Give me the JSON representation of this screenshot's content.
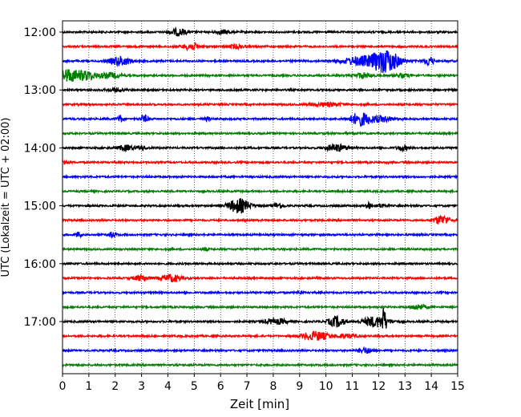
{
  "chart_data": {
    "type": "line",
    "title": "",
    "xlabel": "Zeit  [min]",
    "ylabel": "UTC (Lokalzeit = UTC + 02:00)",
    "xlim": [
      0,
      15
    ],
    "x_ticks": [
      "0",
      "1",
      "2",
      "3",
      "4",
      "5",
      "6",
      "7",
      "8",
      "9",
      "10",
      "11",
      "12",
      "13",
      "14",
      "15"
    ],
    "y_ticks": [
      "12:00",
      "13:00",
      "14:00",
      "15:00",
      "16:00",
      "17:00"
    ],
    "grid": "vertical-dotted",
    "trace_colors": [
      "#000000",
      "#ff0000",
      "#0000ff",
      "#008000"
    ],
    "traces": [
      {
        "start": "12:00",
        "color": "#000000",
        "events": [
          {
            "t": 4.4,
            "a": 4,
            "w": 0.3
          },
          {
            "t": 6.1,
            "a": 2,
            "w": 0.3
          }
        ]
      },
      {
        "start": "12:15",
        "color": "#ff0000",
        "events": [
          {
            "t": 4.9,
            "a": 4,
            "w": 0.3
          },
          {
            "t": 6.6,
            "a": 2,
            "w": 0.3
          }
        ]
      },
      {
        "start": "12:30",
        "color": "#0000ff",
        "events": [
          {
            "t": 2.2,
            "a": 5,
            "w": 0.4
          },
          {
            "t": 11.4,
            "a": 5,
            "w": 0.8
          },
          {
            "t": 12.3,
            "a": 12,
            "w": 0.5
          },
          {
            "t": 13.9,
            "a": 5,
            "w": 0.2
          }
        ]
      },
      {
        "start": "12:45",
        "color": "#008000",
        "events": [
          {
            "t": 0.2,
            "a": 7,
            "w": 0.4
          },
          {
            "t": 0.9,
            "a": 5,
            "w": 0.4
          },
          {
            "t": 1.8,
            "a": 3,
            "w": 0.4
          },
          {
            "t": 11.4,
            "a": 3,
            "w": 0.3
          },
          {
            "t": 12.9,
            "a": 2,
            "w": 0.3
          }
        ]
      },
      {
        "start": "13:00",
        "color": "#000000",
        "events": [
          {
            "t": 2.0,
            "a": 2,
            "w": 0.3
          }
        ]
      },
      {
        "start": "13:15",
        "color": "#ff0000",
        "events": [
          {
            "t": 10.0,
            "a": 2,
            "w": 0.6
          }
        ]
      },
      {
        "start": "13:30",
        "color": "#0000ff",
        "events": [
          {
            "t": 2.2,
            "a": 4,
            "w": 0.1
          },
          {
            "t": 3.1,
            "a": 4,
            "w": 0.15
          },
          {
            "t": 5.5,
            "a": 2,
            "w": 0.1
          },
          {
            "t": 11.3,
            "a": 7,
            "w": 0.4
          },
          {
            "t": 12.1,
            "a": 3,
            "w": 0.5
          }
        ]
      },
      {
        "start": "13:45",
        "color": "#008000",
        "events": []
      },
      {
        "start": "14:00",
        "color": "#000000",
        "events": [
          {
            "t": 2.4,
            "a": 3,
            "w": 0.3
          },
          {
            "t": 3.0,
            "a": 2,
            "w": 0.2
          },
          {
            "t": 10.4,
            "a": 4,
            "w": 0.4
          },
          {
            "t": 12.9,
            "a": 3,
            "w": 0.2
          }
        ]
      },
      {
        "start": "14:15",
        "color": "#ff0000",
        "events": [
          {
            "t": 0.1,
            "a": 3,
            "w": 0.1
          }
        ]
      },
      {
        "start": "14:30",
        "color": "#0000ff",
        "events": []
      },
      {
        "start": "14:45",
        "color": "#008000",
        "events": []
      },
      {
        "start": "15:00",
        "color": "#000000",
        "events": [
          {
            "t": 6.7,
            "a": 8,
            "w": 0.4
          },
          {
            "t": 8.2,
            "a": 3,
            "w": 0.2
          },
          {
            "t": 11.6,
            "a": 5,
            "w": 0.08
          },
          {
            "t": 12.1,
            "a": 2,
            "w": 0.2
          }
        ]
      },
      {
        "start": "15:15",
        "color": "#ff0000",
        "events": [
          {
            "t": 14.4,
            "a": 5,
            "w": 0.3
          }
        ]
      },
      {
        "start": "15:30",
        "color": "#0000ff",
        "events": [
          {
            "t": 0.6,
            "a": 3,
            "w": 0.1
          },
          {
            "t": 1.9,
            "a": 3,
            "w": 0.15
          }
        ]
      },
      {
        "start": "15:45",
        "color": "#008000",
        "events": [
          {
            "t": 5.4,
            "a": 2,
            "w": 0.1
          }
        ]
      },
      {
        "start": "16:00",
        "color": "#000000",
        "events": []
      },
      {
        "start": "16:15",
        "color": "#ff0000",
        "events": [
          {
            "t": 3.0,
            "a": 3,
            "w": 0.3
          },
          {
            "t": 4.1,
            "a": 4,
            "w": 0.4
          }
        ]
      },
      {
        "start": "16:30",
        "color": "#0000ff",
        "events": [
          {
            "t": 9.0,
            "a": 2,
            "w": 0.1
          }
        ]
      },
      {
        "start": "16:45",
        "color": "#008000",
        "events": [
          {
            "t": 13.5,
            "a": 3,
            "w": 0.3
          }
        ]
      },
      {
        "start": "17:00",
        "color": "#000000",
        "events": [
          {
            "t": 7.9,
            "a": 2,
            "w": 0.3
          },
          {
            "t": 8.3,
            "a": 2,
            "w": 0.3
          },
          {
            "t": 10.4,
            "a": 6,
            "w": 0.3
          },
          {
            "t": 11.9,
            "a": 6,
            "w": 0.5
          },
          {
            "t": 12.2,
            "a": 12,
            "w": 0.08
          }
        ]
      },
      {
        "start": "17:15",
        "color": "#ff0000",
        "events": [
          {
            "t": 9.6,
            "a": 5,
            "w": 0.5
          },
          {
            "t": 10.8,
            "a": 2,
            "w": 0.4
          }
        ]
      },
      {
        "start": "17:30",
        "color": "#0000ff",
        "events": [
          {
            "t": 11.5,
            "a": 3,
            "w": 0.3
          }
        ]
      },
      {
        "start": "17:45",
        "color": "#008000",
        "events": []
      }
    ]
  }
}
